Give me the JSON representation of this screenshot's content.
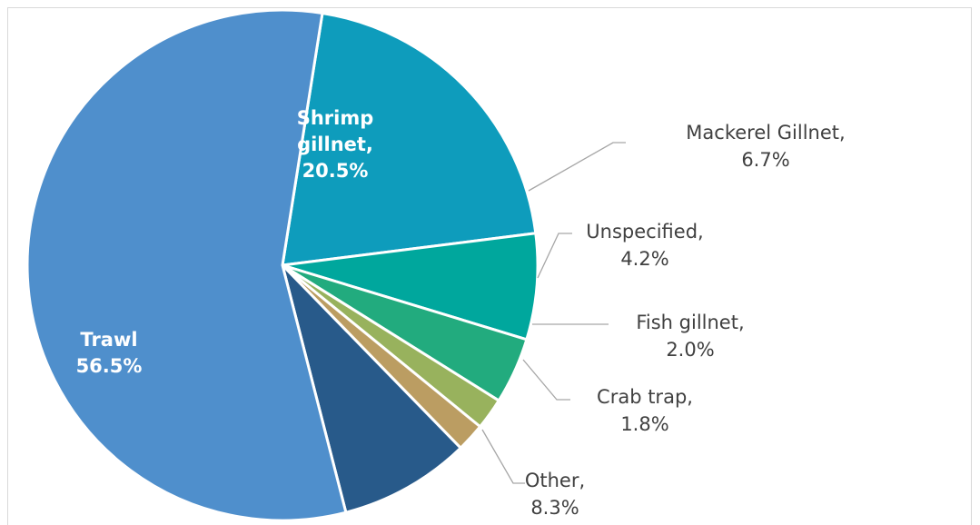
{
  "chart_data": {
    "type": "pie",
    "slices": [
      {
        "label_lines": [
          "Shrimp",
          "gillnet,",
          "20.5%"
        ],
        "category": "Shrimp gillnet",
        "value": 20.5,
        "color": "#0e9cbc",
        "label_inside": true
      },
      {
        "label_lines": [
          "Mackerel Gillnet,",
          "6.7%"
        ],
        "category": "Mackerel Gillnet",
        "value": 6.7,
        "color": "#00a79d",
        "label_inside": false
      },
      {
        "label_lines": [
          "Unspecified,",
          "4.2%"
        ],
        "category": "Unspecified",
        "value": 4.2,
        "color": "#22ab7e",
        "label_inside": false
      },
      {
        "label_lines": [
          "Fish gillnet,",
          "2.0%"
        ],
        "category": "Fish gillnet",
        "value": 2.0,
        "color": "#98b25d",
        "label_inside": false
      },
      {
        "label_lines": [
          "Crab trap,",
          "1.8%"
        ],
        "category": "Crab trap",
        "value": 1.8,
        "color": "#bb9d62",
        "label_inside": false
      },
      {
        "label_lines": [
          "Other,",
          "8.3%"
        ],
        "category": "Other",
        "value": 8.3,
        "color": "#285a8a",
        "label_inside": false
      },
      {
        "label_lines": [
          "Trawl",
          "56.5%"
        ],
        "category": "Trawl",
        "value": 56.5,
        "color": "#4f8fcc",
        "label_inside": true
      }
    ],
    "start_angle_deg": 9,
    "direction": "clockwise",
    "legend": "none"
  }
}
